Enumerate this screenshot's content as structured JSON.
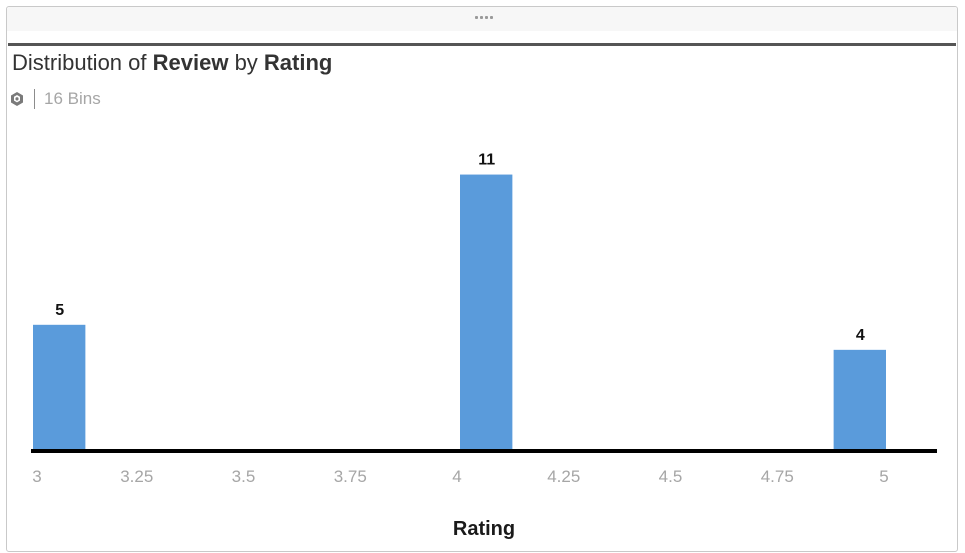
{
  "title": {
    "prefix": "Distribution of ",
    "measure": "Review",
    "middle": " by ",
    "dimension": "Rating"
  },
  "subtitle": {
    "icon": "model-cube-icon",
    "bins_label": "16 Bins"
  },
  "colors": {
    "bar": "#5a9bdb",
    "axis": "#000000",
    "tick_label": "#a6a6a6",
    "title": "#333333"
  },
  "chart_data": {
    "type": "bar",
    "title": "Distribution of Review by Rating",
    "xlabel": "Rating",
    "ylabel": "",
    "bins": 16,
    "xlim": [
      3,
      5
    ],
    "ylim": [
      0,
      12.5
    ],
    "xticks": [
      "3",
      "3.25",
      "3.5",
      "3.75",
      "4",
      "4.25",
      "4.5",
      "4.75",
      "5"
    ],
    "bars": [
      {
        "x_start": 3.0,
        "x_end": 3.125,
        "value": 5,
        "label": "5"
      },
      {
        "x_start": 4.0,
        "x_end": 4.125,
        "value": 11,
        "label": "11"
      },
      {
        "x_start": 4.875,
        "x_end": 5.0,
        "value": 4,
        "label": "4"
      }
    ],
    "grid": false,
    "legend": "none"
  }
}
